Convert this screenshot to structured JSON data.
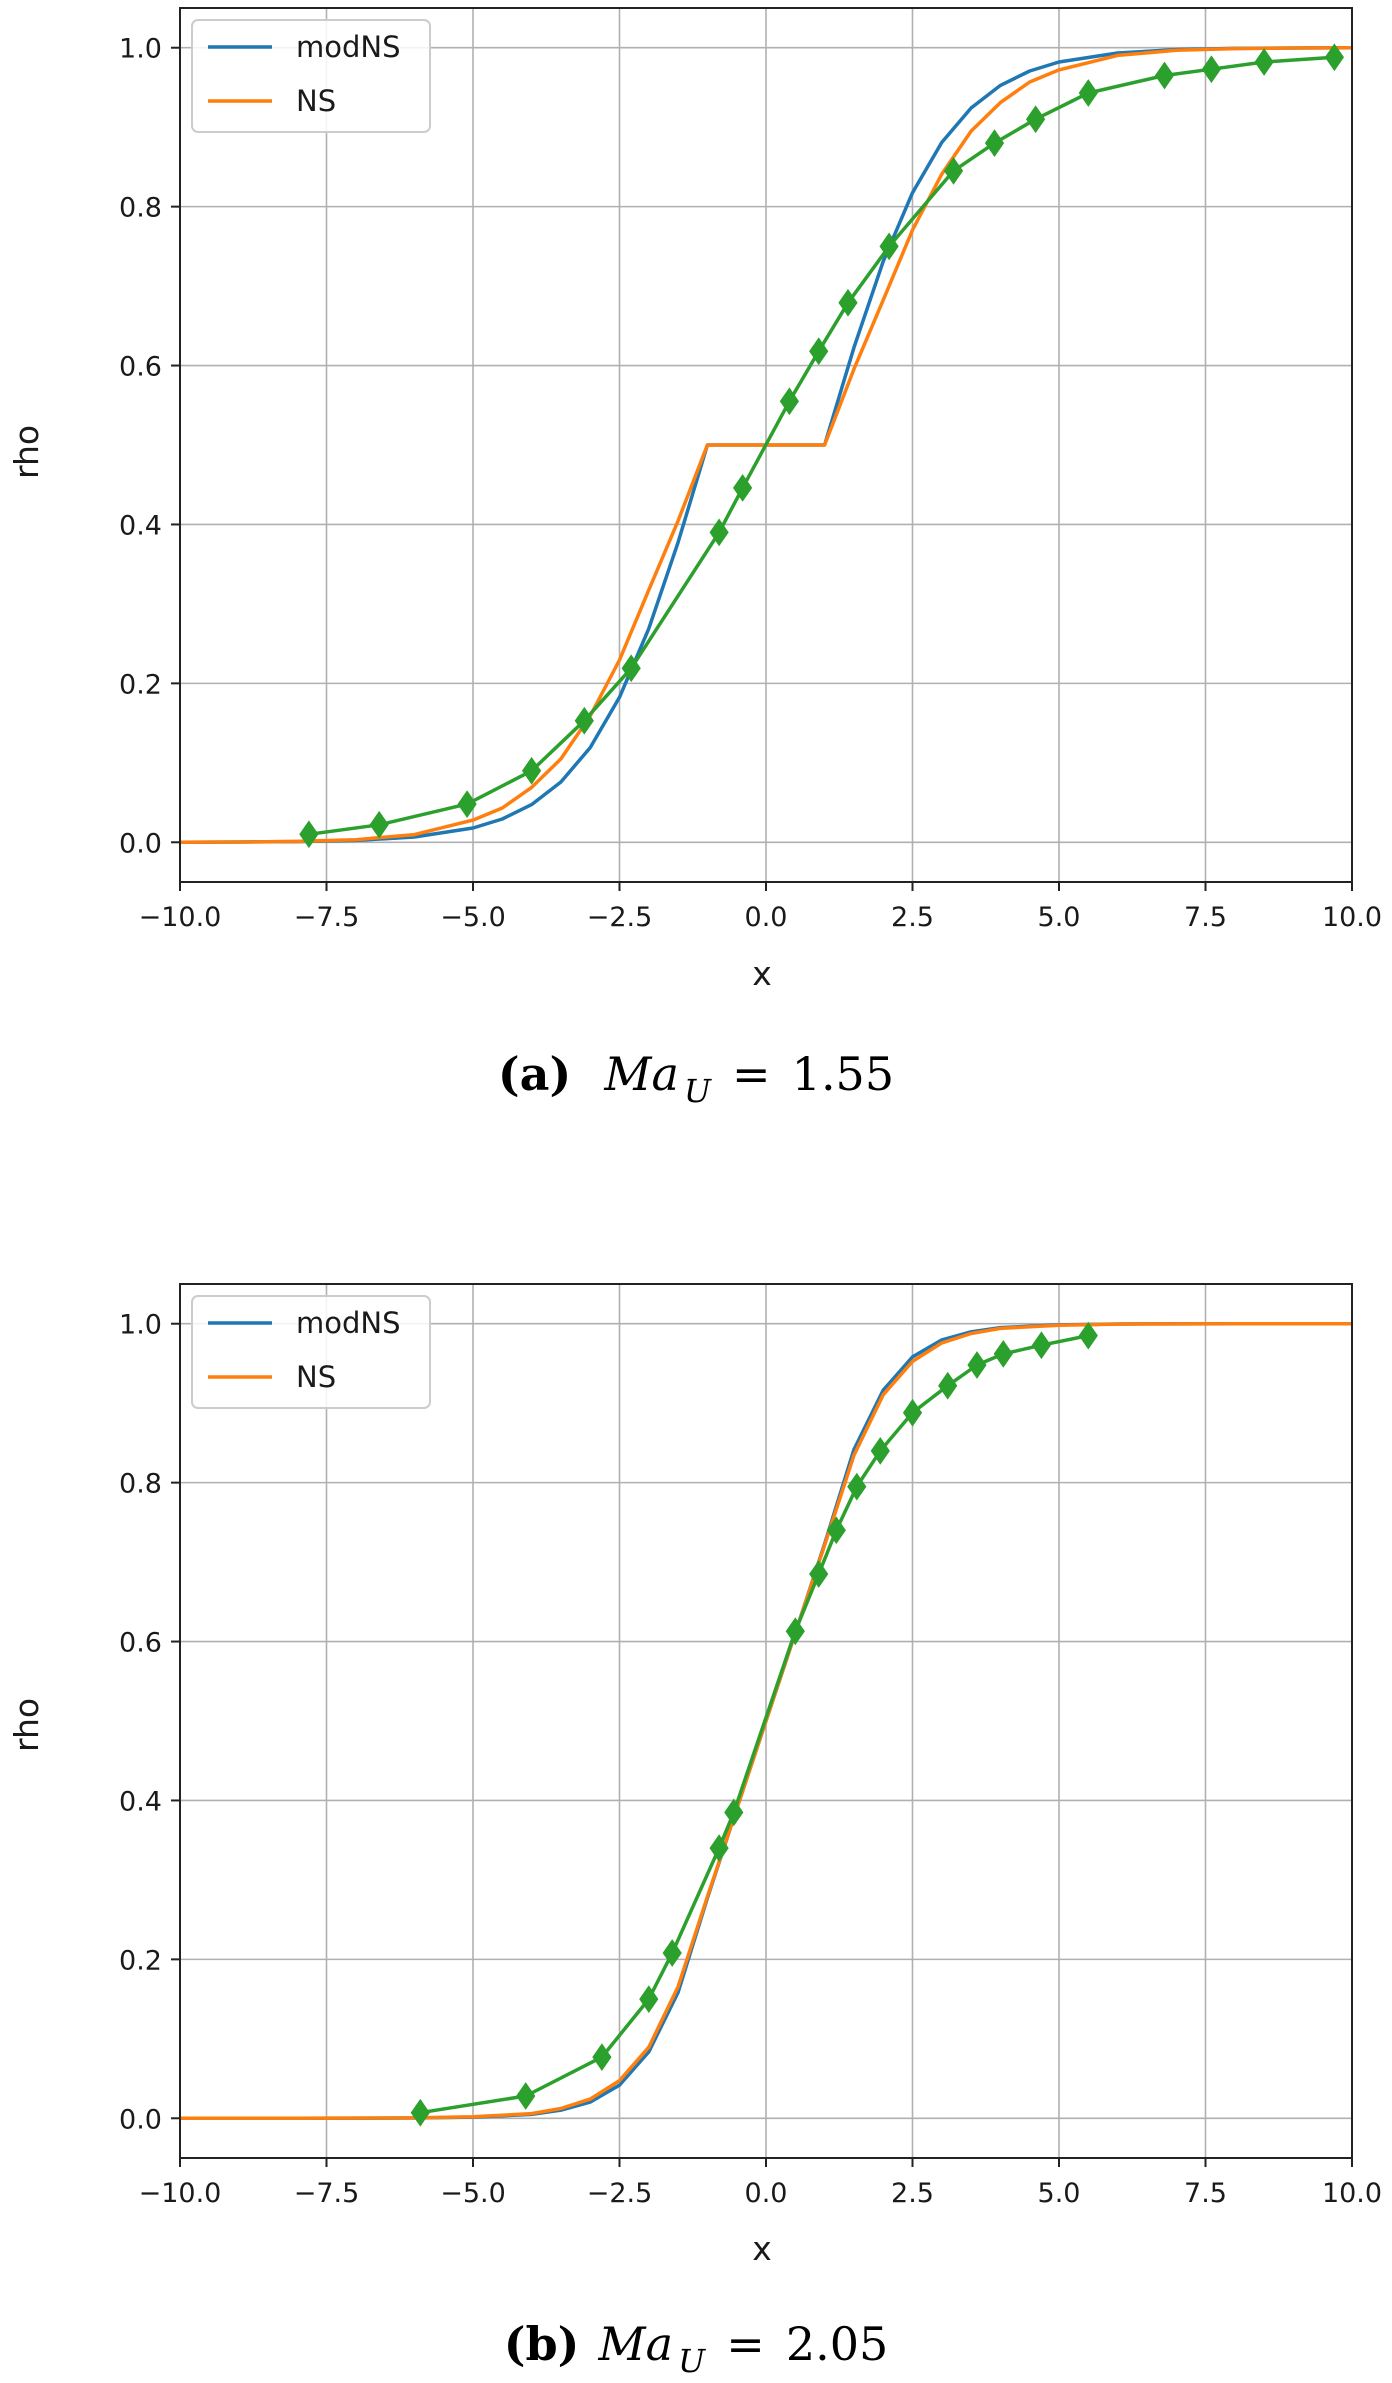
{
  "chart_data": [
    {
      "type": "line",
      "panel_tag": "(a)",
      "caption": {
        "symbol": "Ma",
        "subscript": "U",
        "equals": "=",
        "value": "1.55"
      },
      "xlabel": "x",
      "ylabel": "rho",
      "xlim": [
        -10.0,
        10.0
      ],
      "ylim": [
        -0.05,
        1.05
      ],
      "x_ticks": [
        -10.0,
        -7.5,
        -5.0,
        -2.5,
        0.0,
        2.5,
        5.0,
        7.5,
        10.0
      ],
      "x_tick_labels": [
        "−10.0",
        "−7.5",
        "−5.0",
        "−2.5",
        "0.0",
        "2.5",
        "5.0",
        "7.5",
        "10.0"
      ],
      "y_ticks": [
        0.0,
        0.2,
        0.4,
        0.6,
        0.8,
        1.0
      ],
      "y_tick_labels": [
        "0.0",
        "0.2",
        "0.4",
        "0.6",
        "0.8",
        "1.0"
      ],
      "grid": true,
      "legend_position": "top-left",
      "series": [
        {
          "name": "modNS",
          "color": "#1f77b4",
          "x": [
            -10.0,
            -9.0,
            -8.0,
            -7.0,
            -6.0,
            -5.0,
            -4.5,
            -4.0,
            -3.5,
            -3.0,
            -2.5,
            -2.0,
            -1.5,
            -1.0,
            -0.5,
            0.0,
            0.5,
            1.0,
            1.5,
            2.0,
            2.5,
            3.0,
            3.5,
            4.0,
            4.5,
            5.0,
            6.0,
            7.0,
            8.0,
            9.0,
            10.0
          ],
          "y": [
            0.0001,
            0.0003,
            0.0008,
            0.0024,
            0.0066,
            0.018,
            0.0293,
            0.0474,
            0.0759,
            0.1192,
            0.1824,
            0.2689,
            0.3775,
            0.5,
            0.5,
            0.5,
            0.5,
            0.5,
            0.6225,
            0.7311,
            0.8176,
            0.8808,
            0.9241,
            0.9526,
            0.9707,
            0.982,
            0.9934,
            0.9976,
            0.9992,
            0.9997,
            0.9999
          ]
        },
        {
          "name": "NS",
          "color": "#ff7f0e",
          "x": [
            -10.0,
            -9.0,
            -8.0,
            -7.0,
            -6.0,
            -5.0,
            -4.5,
            -4.0,
            -3.5,
            -3.0,
            -2.5,
            -2.0,
            -1.5,
            -1.0,
            -0.5,
            0.0,
            0.5,
            1.0,
            1.5,
            2.0,
            2.5,
            3.0,
            3.5,
            4.0,
            4.5,
            5.0,
            6.0,
            7.0,
            8.0,
            9.0,
            10.0
          ],
          "y": [
            0.0001,
            0.0004,
            0.0011,
            0.0033,
            0.0097,
            0.0279,
            0.0431,
            0.0691,
            0.1049,
            0.159,
            0.2294,
            0.3176,
            0.4046,
            0.5,
            0.5,
            0.5,
            0.5,
            0.5,
            0.5954,
            0.6824,
            0.7706,
            0.841,
            0.8951,
            0.9309,
            0.9569,
            0.9721,
            0.9903,
            0.9967,
            0.9989,
            0.9996,
            0.9999
          ]
        },
        {
          "name": "",
          "color": "#2ca02c",
          "marker": "diamond",
          "x": [
            -7.8,
            -6.6,
            -5.1,
            -4.0,
            -3.1,
            -2.3,
            -0.8,
            -0.4,
            0.4,
            0.9,
            1.4,
            2.1,
            3.2,
            3.9,
            4.6,
            5.5,
            6.8,
            7.6,
            8.5,
            9.7
          ],
          "y": [
            0.01,
            0.022,
            0.048,
            0.09,
            0.153,
            0.219,
            0.39,
            0.446,
            0.555,
            0.618,
            0.679,
            0.75,
            0.845,
            0.88,
            0.91,
            0.943,
            0.965,
            0.973,
            0.982,
            0.988
          ]
        }
      ]
    },
    {
      "type": "line",
      "panel_tag": "(b)",
      "caption": {
        "symbol": "Ma",
        "subscript": "U",
        "equals": "=",
        "value": "2.05"
      },
      "xlabel": "x",
      "ylabel": "rho",
      "xlim": [
        -10.0,
        10.0
      ],
      "ylim": [
        -0.05,
        1.05
      ],
      "x_ticks": [
        -10.0,
        -7.5,
        -5.0,
        -2.5,
        0.0,
        2.5,
        5.0,
        7.5,
        10.0
      ],
      "x_tick_labels": [
        "−10.0",
        "−7.5",
        "−5.0",
        "−2.5",
        "0.0",
        "2.5",
        "5.0",
        "7.5",
        "10.0"
      ],
      "y_ticks": [
        0.0,
        0.2,
        0.4,
        0.6,
        0.8,
        1.0
      ],
      "y_tick_labels": [
        "0.0",
        "0.2",
        "0.4",
        "0.6",
        "0.8",
        "1.0"
      ],
      "grid": true,
      "legend_position": "top-left",
      "series": [
        {
          "name": "modNS",
          "color": "#1f77b4",
          "x": [
            -10.0,
            -8.0,
            -6.0,
            -5.0,
            -4.0,
            -3.5,
            -3.0,
            -2.5,
            -2.0,
            -1.5,
            -1.0,
            -0.5,
            0.0,
            0.5,
            1.0,
            1.5,
            2.0,
            2.5,
            3.0,
            3.5,
            4.0,
            5.0,
            6.0,
            8.0,
            10.0
          ],
          "y": [
            0.0,
            0.0,
            0.0004,
            0.0015,
            0.0049,
            0.0102,
            0.0203,
            0.0418,
            0.0836,
            0.1585,
            0.2771,
            0.3894,
            0.5,
            0.6106,
            0.7229,
            0.8415,
            0.9164,
            0.9582,
            0.9797,
            0.9898,
            0.9951,
            0.9985,
            0.9996,
            1.0,
            1.0
          ]
        },
        {
          "name": "NS",
          "color": "#ff7f0e",
          "x": [
            -10.0,
            -8.0,
            -6.0,
            -5.0,
            -4.0,
            -3.5,
            -3.0,
            -2.5,
            -2.0,
            -1.5,
            -1.0,
            -0.5,
            0.0,
            0.5,
            1.0,
            1.5,
            2.0,
            2.5,
            3.0,
            3.5,
            4.0,
            5.0,
            6.0,
            8.0,
            10.0
          ],
          "y": [
            0.0,
            0.0,
            0.0005,
            0.0018,
            0.0059,
            0.0123,
            0.0241,
            0.0474,
            0.0895,
            0.1657,
            0.2789,
            0.3892,
            0.5,
            0.6108,
            0.7211,
            0.8343,
            0.9105,
            0.9526,
            0.9759,
            0.9877,
            0.9941,
            0.9982,
            0.9995,
            1.0,
            1.0
          ]
        },
        {
          "name": "",
          "color": "#2ca02c",
          "marker": "diamond",
          "x": [
            -5.9,
            -4.1,
            -2.8,
            -2.0,
            -1.6,
            -0.8,
            -0.55,
            0.5,
            0.9,
            1.2,
            1.55,
            1.95,
            2.5,
            3.1,
            3.6,
            4.05,
            4.7,
            5.5
          ],
          "y": [
            0.007,
            0.028,
            0.077,
            0.15,
            0.208,
            0.34,
            0.385,
            0.613,
            0.685,
            0.74,
            0.795,
            0.84,
            0.888,
            0.922,
            0.948,
            0.962,
            0.973,
            0.985
          ]
        }
      ]
    }
  ]
}
